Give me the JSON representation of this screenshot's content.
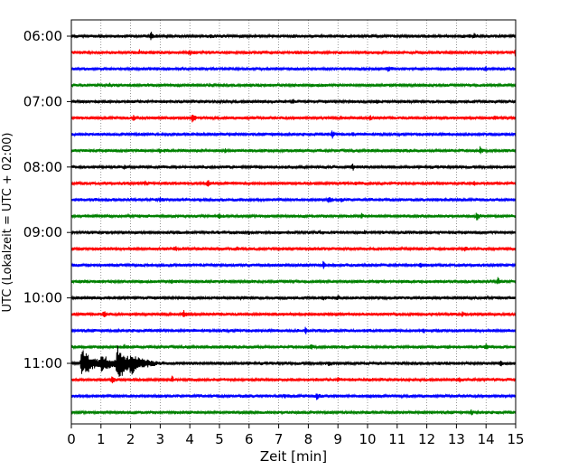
{
  "chart_data": {
    "type": "line",
    "title": "",
    "xlabel": "Zeit  [min]",
    "ylabel": "UTC (Lokalzeit = UTC + 02:00)",
    "xlim": [
      0,
      15
    ],
    "x_ticks": [
      0,
      1,
      2,
      3,
      4,
      5,
      6,
      7,
      8,
      9,
      10,
      11,
      12,
      13,
      14,
      15
    ],
    "y_ticks": [
      "06:00",
      "07:00",
      "08:00",
      "09:00",
      "10:00",
      "11:00"
    ],
    "y_tick_rows": [
      0,
      4,
      8,
      12,
      16,
      20
    ],
    "grid": "vertical dotted",
    "row_interval_minutes": 15,
    "row_start": "06:00",
    "row_count": 24,
    "row_colors": [
      "#000000",
      "#ff0000",
      "#0000ff",
      "#008000"
    ],
    "series": [
      {
        "start": "06:00",
        "spikes": [
          [
            2.7,
            0.7
          ],
          [
            4.7,
            0.3
          ],
          [
            13.6,
            0.45
          ]
        ]
      },
      {
        "start": "06:15",
        "spikes": [
          [
            2.3,
            0.3
          ],
          [
            4.0,
            0.4
          ],
          [
            15.0,
            0.9
          ]
        ]
      },
      {
        "start": "06:30",
        "spikes": [
          [
            10.7,
            0.4
          ],
          [
            14.0,
            0.35
          ]
        ]
      },
      {
        "start": "06:45",
        "spikes": [
          [
            1.3,
            0.35
          ],
          [
            4.7,
            0.25
          ]
        ]
      },
      {
        "start": "07:00",
        "spikes": [
          [
            7.5,
            0.25
          ],
          [
            10.3,
            0.25
          ]
        ]
      },
      {
        "start": "07:15",
        "spikes": [
          [
            2.1,
            0.4
          ],
          [
            4.1,
            0.8
          ],
          [
            10.1,
            0.4
          ],
          [
            14.3,
            0.4
          ]
        ]
      },
      {
        "start": "07:30",
        "spikes": [
          [
            8.8,
            0.8
          ],
          [
            9.5,
            0.3
          ]
        ]
      },
      {
        "start": "07:45",
        "spikes": [
          [
            3.0,
            0.25
          ],
          [
            5.2,
            0.35
          ],
          [
            13.8,
            0.6
          ]
        ]
      },
      {
        "start": "08:00",
        "spikes": [
          [
            1.8,
            0.25
          ],
          [
            9.5,
            0.5
          ]
        ]
      },
      {
        "start": "08:15",
        "spikes": [
          [
            2.5,
            0.35
          ],
          [
            4.6,
            0.7
          ],
          [
            9.6,
            0.35
          ],
          [
            13.6,
            0.3
          ]
        ]
      },
      {
        "start": "08:30",
        "spikes": [
          [
            3.0,
            0.3
          ],
          [
            8.7,
            0.5
          ],
          [
            9.1,
            0.35
          ]
        ]
      },
      {
        "start": "08:45",
        "spikes": [
          [
            2.3,
            0.25
          ],
          [
            5.0,
            0.5
          ],
          [
            9.8,
            0.25
          ],
          [
            13.7,
            0.75
          ]
        ]
      },
      {
        "start": "09:00",
        "spikes": [
          [
            6.0,
            0.25
          ],
          [
            8.4,
            0.3
          ],
          [
            9.9,
            0.25
          ]
        ]
      },
      {
        "start": "09:15",
        "spikes": [
          [
            3.5,
            0.45
          ],
          [
            5.6,
            0.25
          ],
          [
            13.3,
            0.4
          ]
        ]
      },
      {
        "start": "09:30",
        "spikes": [
          [
            8.5,
            0.65
          ],
          [
            11.8,
            0.35
          ]
        ]
      },
      {
        "start": "09:45",
        "spikes": [
          [
            3.4,
            0.4
          ],
          [
            6.1,
            0.25
          ],
          [
            14.4,
            0.75
          ]
        ]
      },
      {
        "start": "10:00",
        "spikes": [
          [
            8.5,
            0.3
          ],
          [
            9.0,
            0.3
          ]
        ]
      },
      {
        "start": "10:15",
        "spikes": [
          [
            1.1,
            0.6
          ],
          [
            3.8,
            0.5
          ],
          [
            13.2,
            0.3
          ]
        ]
      },
      {
        "start": "10:30",
        "spikes": [
          [
            7.9,
            0.6
          ],
          [
            11.9,
            0.3
          ]
        ]
      },
      {
        "start": "10:45",
        "spikes": [
          [
            1.8,
            0.3
          ],
          [
            8.1,
            0.35
          ],
          [
            14.0,
            0.75
          ]
        ]
      },
      {
        "start": "11:00",
        "spikes": [
          [
            0.35,
            2.5
          ],
          [
            1.0,
            1.6
          ],
          [
            1.55,
            3.2
          ],
          [
            2.0,
            2.2
          ],
          [
            2.5,
            0.8
          ],
          [
            8.7,
            0.4
          ],
          [
            14.5,
            0.3
          ]
        ]
      },
      {
        "start": "11:15",
        "spikes": [
          [
            1.4,
            0.8
          ],
          [
            3.4,
            0.5
          ],
          [
            9.0,
            0.35
          ],
          [
            13.1,
            0.3
          ]
        ]
      },
      {
        "start": "11:30",
        "spikes": [
          [
            7.2,
            0.3
          ],
          [
            8.3,
            0.6
          ]
        ]
      },
      {
        "start": "11:45",
        "spikes": [
          [
            13.5,
            0.5
          ]
        ]
      }
    ]
  }
}
